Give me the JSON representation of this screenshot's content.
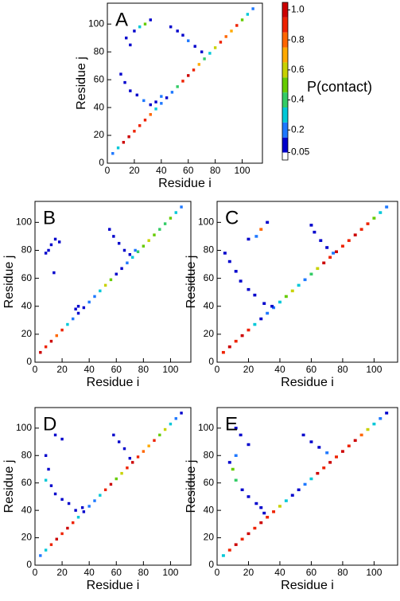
{
  "chart_data": [
    {
      "type": "contact-map",
      "label": "A",
      "xlabel": "Residue i",
      "ylabel": "Residue j",
      "xlim": [
        0,
        115
      ],
      "ylim": [
        0,
        115
      ],
      "xticks": [
        0,
        20,
        40,
        60,
        80,
        100
      ],
      "yticks": [
        0,
        20,
        40,
        60,
        80,
        100
      ],
      "x": [
        4,
        8,
        12,
        16,
        20,
        24,
        28,
        32,
        36,
        40,
        44,
        48,
        52,
        56,
        60,
        64,
        68,
        72,
        76,
        80,
        84,
        88,
        92,
        96,
        100,
        104,
        108,
        14,
        17,
        20,
        24,
        28,
        32,
        47,
        52,
        56,
        60,
        65,
        70,
        10,
        13,
        17,
        22,
        27,
        32,
        36,
        40
      ],
      "y": [
        7,
        11,
        15,
        19,
        23,
        27,
        31,
        35,
        39,
        43,
        47,
        51,
        55,
        59,
        63,
        67,
        71,
        75,
        79,
        83,
        87,
        91,
        95,
        99,
        103,
        107,
        111,
        90,
        85,
        95,
        98,
        100,
        103,
        98,
        95,
        92,
        88,
        84,
        80,
        64,
        58,
        52,
        49,
        45,
        42,
        44,
        48
      ],
      "values": [
        0.2,
        0.3,
        0.95,
        0.95,
        0.9,
        0.85,
        0.9,
        0.8,
        0.3,
        0.15,
        0.1,
        0.2,
        0.4,
        0.9,
        0.95,
        0.9,
        0.7,
        0.4,
        0.3,
        0.6,
        0.9,
        0.8,
        0.7,
        0.9,
        0.5,
        0.3,
        0.15,
        0.1,
        0.1,
        0.1,
        0.3,
        0.5,
        0.1,
        0.1,
        0.1,
        0.1,
        0.15,
        0.1,
        0.1,
        0.1,
        0.1,
        0.1,
        0.1,
        0.15,
        0.1,
        0.1,
        0.2
      ],
      "colorbar": {
        "label": "P(contact)",
        "lim": [
          0,
          1.05
        ],
        "ticks": [
          0.05,
          0.2,
          0.4,
          0.6,
          0.8,
          {
            "value": 1,
            "label": "1.0"
          }
        ],
        "bounds": [
          0,
          0.05,
          0.15,
          0.25,
          0.35,
          0.45,
          0.55,
          0.65,
          0.75,
          0.85,
          0.95,
          1.05
        ],
        "colors": [
          "#ffffff",
          "#0000cc",
          "#1e78ff",
          "#00c8d8",
          "#33cc66",
          "#66cc00",
          "#c8d200",
          "#ffaa00",
          "#ff6600",
          "#ee2200",
          "#cc0000"
        ]
      }
    },
    {
      "type": "contact-map",
      "label": "B",
      "xlabel": "Residue i",
      "ylabel": "Residue j",
      "xlim": [
        0,
        115
      ],
      "ylim": [
        0,
        115
      ],
      "xticks": [
        0,
        20,
        40,
        60,
        80,
        100
      ],
      "yticks": [
        0,
        20,
        40,
        60,
        80,
        100
      ],
      "x": [
        4,
        8,
        12,
        16,
        20,
        24,
        28,
        32,
        36,
        40,
        44,
        48,
        52,
        56,
        60,
        64,
        68,
        72,
        76,
        80,
        84,
        88,
        92,
        96,
        100,
        104,
        108,
        8,
        12,
        15,
        18,
        10,
        14,
        30,
        32,
        55,
        58,
        62,
        66,
        70,
        74
      ],
      "y": [
        7,
        11,
        15,
        19,
        23,
        27,
        31,
        35,
        39,
        43,
        47,
        51,
        55,
        59,
        63,
        67,
        71,
        75,
        79,
        83,
        87,
        91,
        95,
        99,
        103,
        107,
        111,
        78,
        84,
        88,
        86,
        80,
        64,
        38,
        40,
        95,
        90,
        85,
        80,
        77,
        80
      ],
      "values": [
        0.95,
        0.9,
        0.95,
        0.8,
        0.9,
        0.3,
        0.2,
        0.1,
        0.1,
        0.15,
        0.2,
        0.3,
        0.6,
        0.5,
        0.1,
        0.1,
        0.2,
        0.3,
        0.4,
        0.5,
        0.6,
        0.5,
        0.4,
        0.4,
        0.5,
        0.3,
        0.2,
        0.1,
        0.1,
        0.1,
        0.1,
        0.1,
        0.1,
        0.1,
        0.1,
        0.1,
        0.1,
        0.1,
        0.1,
        0.1,
        0.15
      ]
    },
    {
      "type": "contact-map",
      "label": "C",
      "xlabel": "Residue i",
      "ylabel": "Residue j",
      "xlim": [
        0,
        115
      ],
      "ylim": [
        0,
        115
      ],
      "xticks": [
        0,
        20,
        40,
        60,
        80,
        100
      ],
      "yticks": [
        0,
        20,
        40,
        60,
        80,
        100
      ],
      "x": [
        4,
        8,
        12,
        16,
        20,
        24,
        28,
        32,
        36,
        40,
        44,
        48,
        52,
        56,
        60,
        64,
        68,
        72,
        76,
        80,
        84,
        88,
        92,
        96,
        100,
        104,
        108,
        5,
        8,
        12,
        15,
        20,
        24,
        30,
        35,
        20,
        25,
        28,
        32,
        60,
        62,
        66,
        70,
        74
      ],
      "y": [
        7,
        11,
        15,
        19,
        23,
        27,
        31,
        35,
        39,
        43,
        47,
        51,
        55,
        59,
        63,
        67,
        71,
        75,
        79,
        83,
        87,
        91,
        95,
        99,
        103,
        107,
        111,
        78,
        72,
        65,
        58,
        52,
        48,
        42,
        40,
        88,
        90,
        95,
        100,
        98,
        93,
        87,
        82,
        78
      ],
      "values": [
        0.9,
        0.95,
        0.9,
        0.95,
        0.9,
        0.3,
        0.1,
        0.15,
        0.2,
        0.3,
        0.5,
        0.6,
        0.3,
        0.2,
        0.4,
        0.6,
        0.95,
        0.9,
        0.95,
        0.9,
        0.9,
        0.95,
        0.9,
        0.9,
        0.5,
        0.3,
        0.2,
        0.1,
        0.1,
        0.1,
        0.1,
        0.1,
        0.1,
        0.1,
        0.1,
        0.1,
        0.15,
        0.8,
        0.1,
        0.1,
        0.1,
        0.1,
        0.1,
        0.15
      ]
    },
    {
      "type": "contact-map",
      "label": "D",
      "xlabel": "Residue i",
      "ylabel": "Residue j",
      "xlim": [
        0,
        115
      ],
      "ylim": [
        0,
        115
      ],
      "xticks": [
        0,
        20,
        40,
        60,
        80,
        100
      ],
      "yticks": [
        0,
        20,
        40,
        60,
        80,
        100
      ],
      "x": [
        4,
        8,
        12,
        16,
        20,
        24,
        28,
        32,
        36,
        40,
        44,
        48,
        52,
        56,
        60,
        64,
        68,
        72,
        76,
        80,
        84,
        88,
        92,
        96,
        100,
        104,
        108,
        15,
        20,
        8,
        10,
        8,
        12,
        15,
        20,
        25,
        30,
        35,
        58,
        62,
        66,
        70
      ],
      "y": [
        7,
        11,
        15,
        19,
        23,
        27,
        31,
        35,
        39,
        43,
        47,
        51,
        55,
        59,
        63,
        67,
        71,
        75,
        79,
        83,
        87,
        91,
        95,
        99,
        103,
        107,
        111,
        95,
        92,
        80,
        70,
        62,
        58,
        52,
        48,
        45,
        40,
        42,
        95,
        90,
        85,
        78
      ],
      "values": [
        0.2,
        0.3,
        0.9,
        0.95,
        0.9,
        0.95,
        0.9,
        0.3,
        0.1,
        0.15,
        0.2,
        0.3,
        0.9,
        0.95,
        0.5,
        0.6,
        0.9,
        0.95,
        0.9,
        0.8,
        0.7,
        0.9,
        0.5,
        0.6,
        0.3,
        0.2,
        0.1,
        0.1,
        0.1,
        0.1,
        0.1,
        0.3,
        0.1,
        0.1,
        0.1,
        0.1,
        0.1,
        0.1,
        0.1,
        0.1,
        0.1,
        0.1
      ]
    },
    {
      "type": "contact-map",
      "label": "E",
      "xlabel": "Residue i",
      "ylabel": "Residue j",
      "xlim": [
        0,
        115
      ],
      "ylim": [
        0,
        115
      ],
      "xticks": [
        0,
        20,
        40,
        60,
        80,
        100
      ],
      "yticks": [
        0,
        20,
        40,
        60,
        80,
        100
      ],
      "x": [
        4,
        8,
        12,
        16,
        20,
        24,
        28,
        32,
        36,
        40,
        44,
        48,
        52,
        56,
        60,
        64,
        68,
        72,
        76,
        80,
        84,
        88,
        92,
        96,
        100,
        104,
        108,
        12,
        15,
        20,
        12,
        8,
        10,
        12,
        16,
        20,
        25,
        30,
        28,
        55,
        60,
        65,
        70
      ],
      "y": [
        7,
        11,
        15,
        19,
        23,
        27,
        31,
        35,
        39,
        43,
        47,
        51,
        55,
        59,
        63,
        67,
        71,
        75,
        79,
        83,
        87,
        91,
        95,
        99,
        103,
        107,
        111,
        100,
        95,
        88,
        80,
        75,
        70,
        62,
        55,
        50,
        45,
        38,
        42,
        95,
        90,
        86,
        82
      ],
      "values": [
        0.3,
        0.9,
        0.95,
        0.9,
        0.95,
        0.9,
        0.95,
        0.9,
        0.9,
        0.6,
        0.3,
        0.1,
        0.1,
        0.2,
        0.3,
        0.95,
        0.9,
        0.95,
        0.9,
        0.95,
        0.9,
        0.95,
        0.8,
        0.6,
        0.3,
        0.2,
        0.1,
        0.1,
        0.1,
        0.1,
        0.2,
        0.1,
        0.5,
        0.4,
        0.1,
        0.1,
        0.1,
        0.1,
        0.1,
        0.1,
        0.1,
        0.1,
        0.15
      ]
    }
  ]
}
